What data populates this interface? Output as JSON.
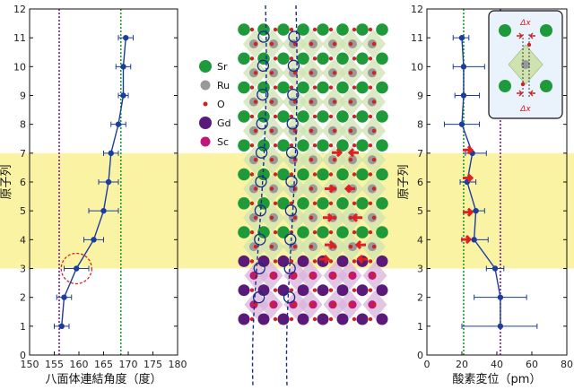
{
  "chart_data": [
    {
      "type": "line",
      "panel": "left",
      "xlabel": "八面体連結角度（度）",
      "ylabel": "原子列",
      "xlim": [
        150,
        180
      ],
      "ylim": [
        0,
        12
      ],
      "xticks": [
        "150",
        "155",
        "160",
        "165",
        "170",
        "175",
        "180"
      ],
      "yticks": [
        "0",
        "1",
        "2",
        "3",
        "4",
        "5",
        "6",
        "7",
        "8",
        "9",
        "10",
        "11",
        "12"
      ],
      "series": [
        {
          "points": [
            {
              "x": 156.5,
              "y": 1,
              "err": 1.5
            },
            {
              "x": 157.0,
              "y": 2,
              "err": 1.5
            },
            {
              "x": 159.5,
              "y": 3,
              "err": 2.5
            },
            {
              "x": 163.0,
              "y": 4,
              "err": 2.0
            },
            {
              "x": 165.0,
              "y": 5,
              "err": 3.0
            },
            {
              "x": 166.0,
              "y": 6,
              "err": 2.0
            },
            {
              "x": 166.5,
              "y": 7,
              "err": 1.5
            },
            {
              "x": 168.0,
              "y": 8,
              "err": 1.5
            },
            {
              "x": 169.0,
              "y": 9,
              "err": 1.0
            },
            {
              "x": 169.0,
              "y": 10,
              "err": 1.5
            },
            {
              "x": 169.5,
              "y": 11,
              "err": 1.5
            }
          ]
        }
      ],
      "ref_lines": [
        {
          "x": 156,
          "color": "#7a1a9a"
        },
        {
          "x": 168.5,
          "color": "#1a9a2a"
        }
      ],
      "highlight_band": {
        "y": [
          3,
          7
        ],
        "color": "#fbf3a4"
      },
      "circled_point_index": 2
    },
    {
      "type": "line",
      "panel": "right",
      "xlabel": "酸素変位（pm）",
      "ylabel": "原子列",
      "xlim": [
        0,
        80
      ],
      "ylim": [
        0,
        12
      ],
      "xticks": [
        "0",
        "20",
        "40",
        "60",
        "80"
      ],
      "yticks": [
        "0",
        "1",
        "2",
        "3",
        "4",
        "5",
        "6",
        "7",
        "8",
        "9",
        "10",
        "11",
        "12"
      ],
      "series": [
        {
          "points": [
            {
              "x": 42,
              "y": 1,
              "xerr_low": 20,
              "xerr_high": 63
            },
            {
              "x": 42,
              "y": 2,
              "xerr_low": 27,
              "xerr_high": 57
            },
            {
              "x": 39,
              "y": 3,
              "xerr_low": 34,
              "xerr_high": 44
            },
            {
              "x": 27,
              "y": 4,
              "xerr_low": 20,
              "xerr_high": 35
            },
            {
              "x": 28,
              "y": 5,
              "xerr_low": 24,
              "xerr_high": 33
            },
            {
              "x": 23,
              "y": 6,
              "xerr_low": 19,
              "xerr_high": 28
            },
            {
              "x": 26,
              "y": 7,
              "xerr_low": 22,
              "xerr_high": 34
            },
            {
              "x": 20,
              "y": 8,
              "xerr_low": 10,
              "xerr_high": 30
            },
            {
              "x": 21,
              "y": 9,
              "xerr_low": 16,
              "xerr_high": 30
            },
            {
              "x": 21,
              "y": 10,
              "xerr_low": 15,
              "xerr_high": 33
            },
            {
              "x": 20,
              "y": 11,
              "xerr_low": 15,
              "xerr_high": 24
            }
          ]
        }
      ],
      "ref_lines": [
        {
          "x": 21,
          "color": "#1a9a2a"
        },
        {
          "x": 42,
          "color": "#7a1a9a"
        }
      ],
      "highlight_band": {
        "y": [
          3,
          7
        ],
        "color": "#fbf3a4"
      },
      "inset_label": "Δx"
    }
  ],
  "structure_diagram": {
    "legend": [
      {
        "label": "Sr",
        "color": "#1f9a3a",
        "size": "large"
      },
      {
        "label": "Ru",
        "color": "#999999",
        "size": "medium"
      },
      {
        "label": "O",
        "color": "#d42020",
        "size": "small"
      },
      {
        "label": "Gd",
        "color": "#5a1a7a",
        "size": "large"
      },
      {
        "label": "Sc",
        "color": "#c0187a",
        "size": "medium"
      }
    ],
    "colors": {
      "sr": "#1f9a3a",
      "ru": "#999999",
      "o": "#d42020",
      "gd": "#5a1a7a",
      "sc": "#c0187a",
      "octa_green": "#cfe3b0",
      "octa_purple": "#d8b4dc",
      "arrow": "#e02020",
      "curve": "#1a2a8a"
    }
  },
  "colors": {
    "axis": "#111111",
    "series": "#1d3d9e",
    "band": "#fbf3a4",
    "circle": "#d62020"
  }
}
